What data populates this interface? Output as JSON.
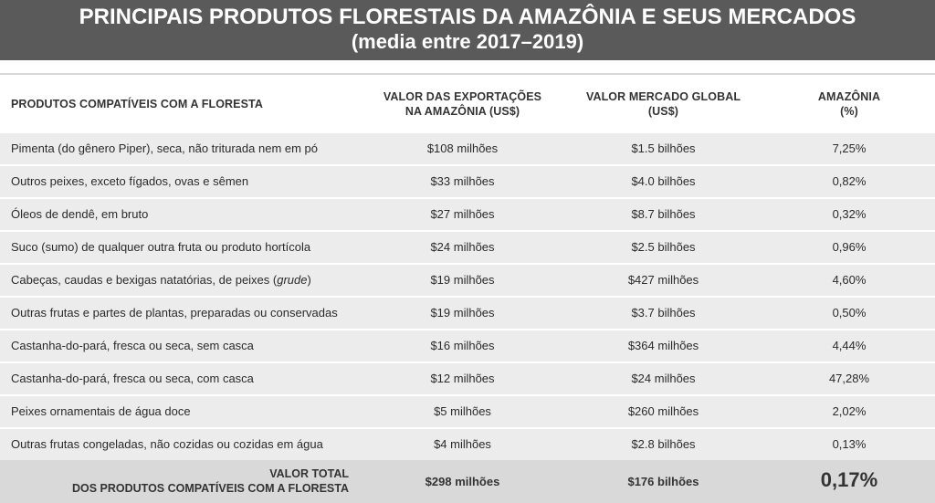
{
  "header": {
    "title_line1": "PRINCIPAIS PRODUTOS FLORESTAIS DA AMAZÔNIA E SEUS MERCADOS",
    "title_line2": "(media entre 2017–2019)"
  },
  "columns": {
    "product": "PRODUTOS COMPATÍVEIS COM A FLORESTA",
    "exports_line1": "VALOR DAS EXPORTAÇÕES",
    "exports_line2": "NA AMAZÔNIA (US$)",
    "global_line1": "VALOR MERCADO GLOBAL",
    "global_line2": "(US$)",
    "share_line1": "AMAZÔNIA",
    "share_line2": "(%)"
  },
  "rows": [
    {
      "product": "Pimenta (do gênero Piper), seca, não triturada nem em pó",
      "exports": "$108 milhões",
      "global": "$1.5 bilhões",
      "share": "7,25%"
    },
    {
      "product": "Outros peixes, exceto fígados, ovas e sêmen",
      "exports": "$33 milhões",
      "global": "$4.0 bilhões",
      "share": "0,82%"
    },
    {
      "product": "Óleos de dendê, em bruto",
      "exports": "$27 milhões",
      "global": "$8.7 bilhões",
      "share": "0,32%"
    },
    {
      "product": "Suco (sumo) de qualquer outra fruta ou produto hortícola",
      "exports": "$24 milhões",
      "global": "$2.5 bilhões",
      "share": "0,96%"
    },
    {
      "product_prefix": "Cabeças, caudas e bexigas natatórias, de peixes (",
      "product_italic": "grude",
      "product_suffix": ")",
      "exports": "$19 milhões",
      "global": "$427 milhões",
      "share": "4,60%"
    },
    {
      "product": "Outras frutas e partes de plantas, preparadas ou conservadas",
      "exports": "$19 milhões",
      "global": "$3.7 bilhões",
      "share": "0,50%"
    },
    {
      "product": "Castanha-do-pará, fresca ou seca, sem casca",
      "exports": "$16 milhões",
      "global": "$364 milhões",
      "share": "4,44%"
    },
    {
      "product": "Castanha-do-pará, fresca ou seca, com casca",
      "exports": "$12 milhões",
      "global": "$24 milhões",
      "share": "47,28%"
    },
    {
      "product": "Peixes ornamentais de água doce",
      "exports": "$5 milhões",
      "global": "$260 milhões",
      "share": "2,02%"
    },
    {
      "product": "Outras frutas congeladas, não cozidas ou cozidas em água",
      "exports": "$4 milhões",
      "global": "$2.8 bilhões",
      "share": "0,13%"
    }
  ],
  "total": {
    "label_line1": "VALOR TOTAL",
    "label_line2": "DOS PRODUTOS COMPATÍVEIS COM A FLORESTA",
    "exports": "$298 milhões",
    "global": "$176 bilhões",
    "share": "0,17%"
  }
}
